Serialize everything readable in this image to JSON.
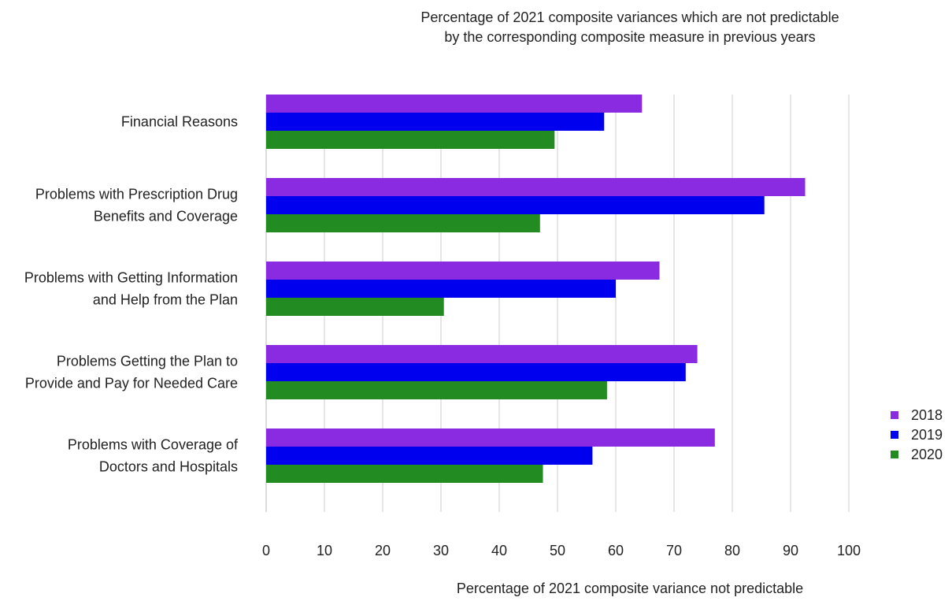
{
  "chart_data": {
    "type": "bar",
    "orientation": "horizontal",
    "title_lines": [
      "Percentage of 2021 composite variances which are not predictable",
      "by the corresponding composite measure in previous years"
    ],
    "xlabel": "Percentage of 2021 composite variance not predictable",
    "ylabel": "",
    "xlim": [
      0,
      100
    ],
    "xticks": [
      "0",
      "10",
      "20",
      "30",
      "40",
      "50",
      "60",
      "70",
      "80",
      "90",
      "100"
    ],
    "grid": "vertical",
    "legend_position": "right",
    "categories": [
      {
        "lines": [
          "Financial Reasons"
        ]
      },
      {
        "lines": [
          "Problems with Prescription Drug",
          "Benefits and Coverage"
        ]
      },
      {
        "lines": [
          "Problems with Getting Information",
          "and Help from the Plan"
        ]
      },
      {
        "lines": [
          "Problems Getting the Plan to",
          "Provide and Pay for Needed Care"
        ]
      },
      {
        "lines": [
          "Problems with Coverage of",
          "Doctors and Hospitals"
        ]
      }
    ],
    "series": [
      {
        "name": "2018",
        "color": "#8a2be2",
        "values": [
          64.5,
          92.5,
          67.5,
          74,
          77
        ]
      },
      {
        "name": "2019",
        "color": "#0000ee",
        "values": [
          58,
          85.5,
          60,
          72,
          56
        ]
      },
      {
        "name": "2020",
        "color": "#228b22",
        "values": [
          49.5,
          47,
          30.5,
          58.5,
          47.5
        ]
      }
    ]
  }
}
